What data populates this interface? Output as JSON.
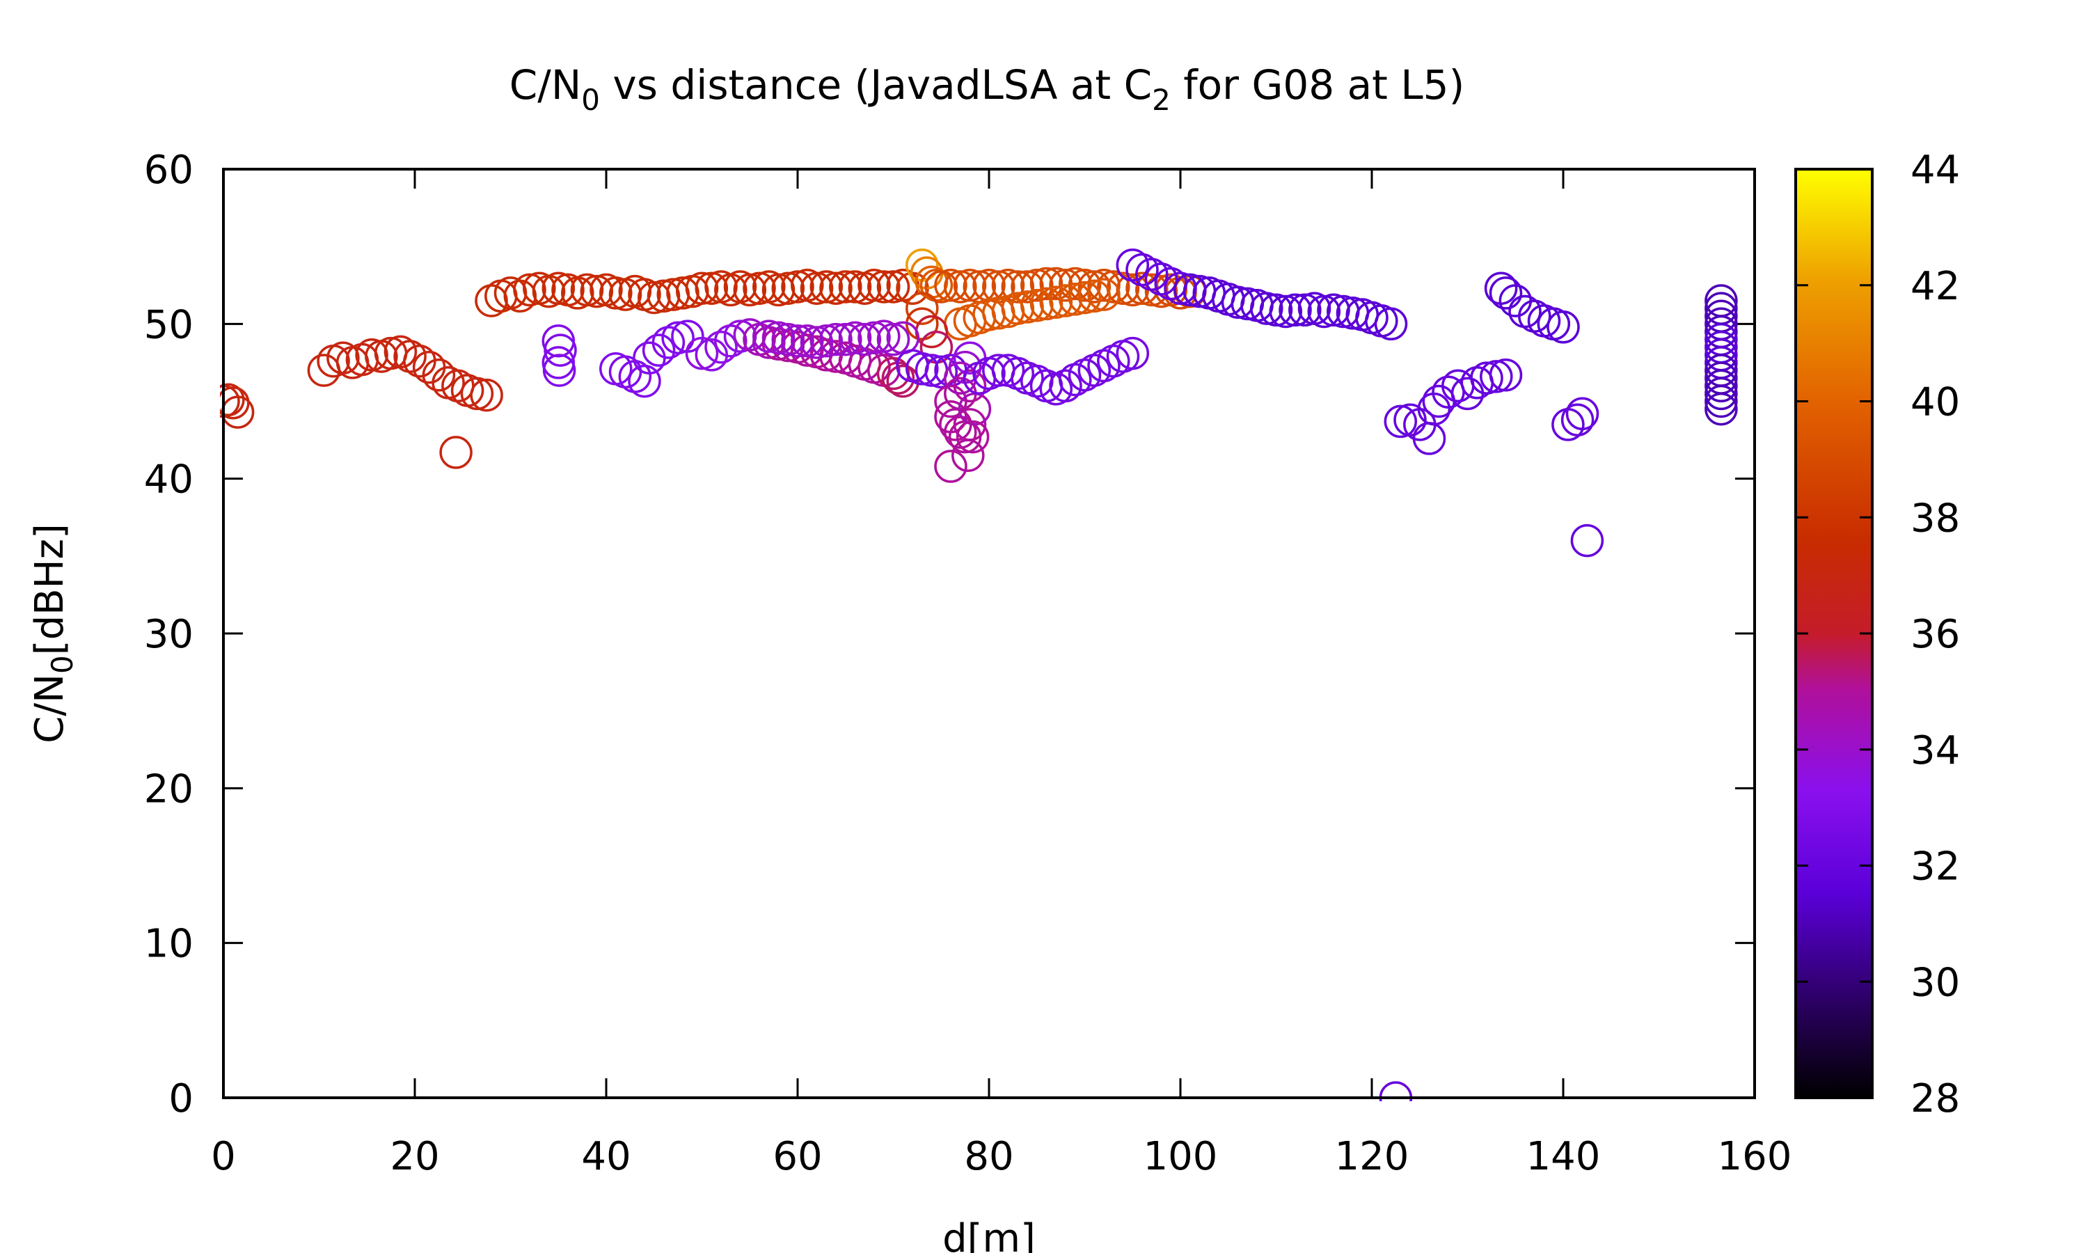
{
  "chart_data": {
    "type": "scatter",
    "title": {
      "prefix": "C/N",
      "prefix_sub": "0",
      "middle": " vs distance (JavadLSA at C",
      "middle_sub": "2",
      "suffix": " for G08 at L5)"
    },
    "xlabel": "d[m]",
    "ylabel": {
      "main": "C/N",
      "sub": "0",
      "rest": "[dBHz]"
    },
    "xlim": [
      0,
      160
    ],
    "ylim": [
      0,
      60
    ],
    "xticks": [
      "0",
      "20",
      "40",
      "60",
      "80",
      "100",
      "120",
      "140",
      "160"
    ],
    "yticks": [
      "0",
      "10",
      "20",
      "30",
      "40",
      "50",
      "60"
    ],
    "colorbar": {
      "range": [
        28,
        44
      ],
      "ticks": [
        "28",
        "30",
        "32",
        "34",
        "36",
        "38",
        "40",
        "42",
        "44"
      ]
    },
    "marker": "open-circle",
    "grid": false,
    "legend": "none",
    "points": [
      [
        0.0,
        45.0,
        37.0
      ],
      [
        0.5,
        45.1,
        37.0
      ],
      [
        1.0,
        44.9,
        37.0
      ],
      [
        1.5,
        44.3,
        37.0
      ],
      [
        10.5,
        47.0,
        37.0
      ],
      [
        11.5,
        47.6,
        37.0
      ],
      [
        12.5,
        47.8,
        37.0
      ],
      [
        13.5,
        47.5,
        37.0
      ],
      [
        14.5,
        47.7,
        37.0
      ],
      [
        15.5,
        48.0,
        37.0
      ],
      [
        16.5,
        47.9,
        37.0
      ],
      [
        17.5,
        48.1,
        37.0
      ],
      [
        18.5,
        48.2,
        37.0
      ],
      [
        19.5,
        47.9,
        37.0
      ],
      [
        20.5,
        47.6,
        37.0
      ],
      [
        21.5,
        47.2,
        37.0
      ],
      [
        22.5,
        46.7,
        37.0
      ],
      [
        23.5,
        46.2,
        37.0
      ],
      [
        24.5,
        46.0,
        37.0
      ],
      [
        25.5,
        45.7,
        37.0
      ],
      [
        26.5,
        45.5,
        37.0
      ],
      [
        27.5,
        45.4,
        37.0
      ],
      [
        24.3,
        41.7,
        37.0
      ],
      [
        28.0,
        51.5,
        37.5
      ],
      [
        29.0,
        51.8,
        37.5
      ],
      [
        30.0,
        52.0,
        37.5
      ],
      [
        31.0,
        51.8,
        37.5
      ],
      [
        32.0,
        52.2,
        37.5
      ],
      [
        33.0,
        52.3,
        37.5
      ],
      [
        34.0,
        52.1,
        37.5
      ],
      [
        35.0,
        52.3,
        37.5
      ],
      [
        36.0,
        52.2,
        37.5
      ],
      [
        37.0,
        52.0,
        37.5
      ],
      [
        38.0,
        52.2,
        37.5
      ],
      [
        39.0,
        52.1,
        37.5
      ],
      [
        40.0,
        52.2,
        37.5
      ],
      [
        41.0,
        52.0,
        37.5
      ],
      [
        42.0,
        51.9,
        37.5
      ],
      [
        43.0,
        52.1,
        37.5
      ],
      [
        44.0,
        51.9,
        37.5
      ],
      [
        45.0,
        51.7,
        37.5
      ],
      [
        46.0,
        51.8,
        37.5
      ],
      [
        47.0,
        51.9,
        37.5
      ],
      [
        48.0,
        52.0,
        37.5
      ],
      [
        49.0,
        52.1,
        37.5
      ],
      [
        50.0,
        52.3,
        37.5
      ],
      [
        51.0,
        52.3,
        37.5
      ],
      [
        52.0,
        52.4,
        37.5
      ],
      [
        53.0,
        52.2,
        37.5
      ],
      [
        54.0,
        52.4,
        37.5
      ],
      [
        55.0,
        52.2,
        37.5
      ],
      [
        56.0,
        52.3,
        37.5
      ],
      [
        57.0,
        52.4,
        37.5
      ],
      [
        58.0,
        52.2,
        37.5
      ],
      [
        59.0,
        52.3,
        37.5
      ],
      [
        60.0,
        52.4,
        37.5
      ],
      [
        61.0,
        52.5,
        37.5
      ],
      [
        62.0,
        52.3,
        37.5
      ],
      [
        63.0,
        52.4,
        37.5
      ],
      [
        64.0,
        52.3,
        37.5
      ],
      [
        65.0,
        52.4,
        37.5
      ],
      [
        66.0,
        52.4,
        37.5
      ],
      [
        67.0,
        52.3,
        37.5
      ],
      [
        68.0,
        52.5,
        37.5
      ],
      [
        69.0,
        52.4,
        37.5
      ],
      [
        70.0,
        52.4,
        37.5
      ],
      [
        71.0,
        52.5,
        37.5
      ],
      [
        72.0,
        52.3,
        38.0
      ],
      [
        73.0,
        53.8,
        42.0
      ],
      [
        73.5,
        53.3,
        41.0
      ],
      [
        74.0,
        52.7,
        40.0
      ],
      [
        74.5,
        52.5,
        39.5
      ],
      [
        75.0,
        52.4,
        39.0
      ],
      [
        76.0,
        52.5,
        39.0
      ],
      [
        77.0,
        52.4,
        39.0
      ],
      [
        78.0,
        52.5,
        39.0
      ],
      [
        79.0,
        52.4,
        39.0
      ],
      [
        80.0,
        52.5,
        39.0
      ],
      [
        81.0,
        52.4,
        39.0
      ],
      [
        82.0,
        52.5,
        39.0
      ],
      [
        83.0,
        52.4,
        39.0
      ],
      [
        84.0,
        52.4,
        39.0
      ],
      [
        85.0,
        52.5,
        39.0
      ],
      [
        86.0,
        52.6,
        39.0
      ],
      [
        87.0,
        52.6,
        39.0
      ],
      [
        88.0,
        52.5,
        39.0
      ],
      [
        89.0,
        52.6,
        39.0
      ],
      [
        90.0,
        52.5,
        39.0
      ],
      [
        91.0,
        52.4,
        39.0
      ],
      [
        92.0,
        52.5,
        39.0
      ],
      [
        93.0,
        52.4,
        39.0
      ],
      [
        94.0,
        52.3,
        39.0
      ],
      [
        95.0,
        52.2,
        39.0
      ],
      [
        96.0,
        52.3,
        39.0
      ],
      [
        97.0,
        52.2,
        39.0
      ],
      [
        98.0,
        52.1,
        39.0
      ],
      [
        99.0,
        52.2,
        39.0
      ],
      [
        100.0,
        52.0,
        39.0
      ],
      [
        101.0,
        52.1,
        39.0
      ],
      [
        77.0,
        50.0,
        39.5
      ],
      [
        78.0,
        50.2,
        39.5
      ],
      [
        79.0,
        50.4,
        39.5
      ],
      [
        80.0,
        50.6,
        39.5
      ],
      [
        81.0,
        50.7,
        39.5
      ],
      [
        82.0,
        50.8,
        39.5
      ],
      [
        83.0,
        51.0,
        39.5
      ],
      [
        84.0,
        51.1,
        39.5
      ],
      [
        85.0,
        51.2,
        39.5
      ],
      [
        86.0,
        51.3,
        39.5
      ],
      [
        87.0,
        51.4,
        39.5
      ],
      [
        88.0,
        51.5,
        39.5
      ],
      [
        89.0,
        51.6,
        39.5
      ],
      [
        90.0,
        51.7,
        39.5
      ],
      [
        91.0,
        51.8,
        39.5
      ],
      [
        92.0,
        51.9,
        39.5
      ],
      [
        73.0,
        51.0,
        38.5
      ],
      [
        73.0,
        50.0,
        38.0
      ],
      [
        74.0,
        49.5,
        36.0
      ],
      [
        74.5,
        48.5,
        35.5
      ],
      [
        35.0,
        48.9,
        33.0
      ],
      [
        35.2,
        48.3,
        33.0
      ],
      [
        35.0,
        47.5,
        33.0
      ],
      [
        35.1,
        47.0,
        33.0
      ],
      [
        41.0,
        47.1,
        33.0
      ],
      [
        42.0,
        46.9,
        33.0
      ],
      [
        43.0,
        46.6,
        33.0
      ],
      [
        44.0,
        46.3,
        33.0
      ],
      [
        44.5,
        47.8,
        33.0
      ],
      [
        45.5,
        48.3,
        33.0
      ],
      [
        46.5,
        48.8,
        33.0
      ],
      [
        47.5,
        49.1,
        33.0
      ],
      [
        48.5,
        49.2,
        33.0
      ],
      [
        50.0,
        48.1,
        33.5
      ],
      [
        51.0,
        48.0,
        33.5
      ],
      [
        52.0,
        48.5,
        33.5
      ],
      [
        53.0,
        48.9,
        33.5
      ],
      [
        54.0,
        49.2,
        33.5
      ],
      [
        55.0,
        49.3,
        34.0
      ],
      [
        56.0,
        49.0,
        34.5
      ],
      [
        57.0,
        48.8,
        34.5
      ],
      [
        58.0,
        48.7,
        35.0
      ],
      [
        59.0,
        48.6,
        35.0
      ],
      [
        60.0,
        48.5,
        35.0
      ],
      [
        61.0,
        48.3,
        35.0
      ],
      [
        62.0,
        48.2,
        35.0
      ],
      [
        63.0,
        48.0,
        35.0
      ],
      [
        64.0,
        47.9,
        35.0
      ],
      [
        65.0,
        47.8,
        35.0
      ],
      [
        66.0,
        47.6,
        35.0
      ],
      [
        67.0,
        47.4,
        35.0
      ],
      [
        68.0,
        47.2,
        35.0
      ],
      [
        69.0,
        47.0,
        35.0
      ],
      [
        70.0,
        46.8,
        35.5
      ],
      [
        70.5,
        46.5,
        35.5
      ],
      [
        71.0,
        46.3,
        35.5
      ],
      [
        57.0,
        49.2,
        34.0
      ],
      [
        58.0,
        49.1,
        34.0
      ],
      [
        59.0,
        49.0,
        34.0
      ],
      [
        60.0,
        48.9,
        34.0
      ],
      [
        61.0,
        48.9,
        34.0
      ],
      [
        62.0,
        48.8,
        34.0
      ],
      [
        63.0,
        48.9,
        34.0
      ],
      [
        64.0,
        49.0,
        34.0
      ],
      [
        65.0,
        49.0,
        34.0
      ],
      [
        66.0,
        49.1,
        34.0
      ],
      [
        67.0,
        49.0,
        34.0
      ],
      [
        68.0,
        49.1,
        34.0
      ],
      [
        69.0,
        49.2,
        34.0
      ],
      [
        70.0,
        49.0,
        34.0
      ],
      [
        71.0,
        49.1,
        34.0
      ],
      [
        72.0,
        47.3,
        32.5
      ],
      [
        73.0,
        47.1,
        32.5
      ],
      [
        74.0,
        47.0,
        32.5
      ],
      [
        75.0,
        46.9,
        32.5
      ],
      [
        76.0,
        47.0,
        32.5
      ],
      [
        76.0,
        44.0,
        35.0
      ],
      [
        76.5,
        43.5,
        35.0
      ],
      [
        77.0,
        43.0,
        35.0
      ],
      [
        77.5,
        42.7,
        35.0
      ],
      [
        78.0,
        43.5,
        35.0
      ],
      [
        76.0,
        45.0,
        35.0
      ],
      [
        77.0,
        45.5,
        35.0
      ],
      [
        78.0,
        46.0,
        35.0
      ],
      [
        78.5,
        44.5,
        34.5
      ],
      [
        76.0,
        40.8,
        35.0
      ],
      [
        77.8,
        41.5,
        35.0
      ],
      [
        78.3,
        42.7,
        35.0
      ],
      [
        77.0,
        46.5,
        34.5
      ],
      [
        77.5,
        47.2,
        34.0
      ],
      [
        78.0,
        47.8,
        33.5
      ],
      [
        79.0,
        46.5,
        32.5
      ],
      [
        80.0,
        46.8,
        32.5
      ],
      [
        81.0,
        47.0,
        32.5
      ],
      [
        82.0,
        47.0,
        32.5
      ],
      [
        83.0,
        46.8,
        32.5
      ],
      [
        84.0,
        46.5,
        32.5
      ],
      [
        85.0,
        46.3,
        32.5
      ],
      [
        86.0,
        46.0,
        32.5
      ],
      [
        87.0,
        45.8,
        32.5
      ],
      [
        88.0,
        46.0,
        32.5
      ],
      [
        89.0,
        46.4,
        32.5
      ],
      [
        90.0,
        46.7,
        32.5
      ],
      [
        91.0,
        47.0,
        32.5
      ],
      [
        92.0,
        47.3,
        32.5
      ],
      [
        93.0,
        47.6,
        32.5
      ],
      [
        94.0,
        47.9,
        32.5
      ],
      [
        95.0,
        48.1,
        32.5
      ],
      [
        95.0,
        53.8,
        32.0
      ],
      [
        96.0,
        53.5,
        32.0
      ],
      [
        97.0,
        53.2,
        32.0
      ],
      [
        98.0,
        52.9,
        32.0
      ],
      [
        99.0,
        52.6,
        32.0
      ],
      [
        100.0,
        52.3,
        32.0
      ],
      [
        101.0,
        52.2,
        31.5
      ],
      [
        102.0,
        52.1,
        31.5
      ],
      [
        103.0,
        52.0,
        31.5
      ],
      [
        104.0,
        51.8,
        31.5
      ],
      [
        105.0,
        51.6,
        31.5
      ],
      [
        106.0,
        51.4,
        31.5
      ],
      [
        107.0,
        51.3,
        31.5
      ],
      [
        108.0,
        51.2,
        31.5
      ],
      [
        109.0,
        51.0,
        31.5
      ],
      [
        110.0,
        50.9,
        31.5
      ],
      [
        111.0,
        50.8,
        31.5
      ],
      [
        112.0,
        50.9,
        31.5
      ],
      [
        113.0,
        50.9,
        31.5
      ],
      [
        114.0,
        51.0,
        31.5
      ],
      [
        115.0,
        50.8,
        31.5
      ],
      [
        116.0,
        50.9,
        31.5
      ],
      [
        117.0,
        50.8,
        31.5
      ],
      [
        118.0,
        50.7,
        31.5
      ],
      [
        119.0,
        50.6,
        31.5
      ],
      [
        120.0,
        50.4,
        31.5
      ],
      [
        121.0,
        50.2,
        31.5
      ],
      [
        122.0,
        50.0,
        31.5
      ],
      [
        122.5,
        0.0,
        32.0
      ],
      [
        123.0,
        43.7,
        32.0
      ],
      [
        124.0,
        43.8,
        32.0
      ],
      [
        125.0,
        43.5,
        32.0
      ],
      [
        126.0,
        42.6,
        32.0
      ],
      [
        126.5,
        44.5,
        32.0
      ],
      [
        127.0,
        45.0,
        32.0
      ],
      [
        128.0,
        45.6,
        32.0
      ],
      [
        129.0,
        46.0,
        32.0
      ],
      [
        130.0,
        45.5,
        32.0
      ],
      [
        131.0,
        46.2,
        32.0
      ],
      [
        132.0,
        46.5,
        32.0
      ],
      [
        133.0,
        46.6,
        32.0
      ],
      [
        134.0,
        46.7,
        32.0
      ],
      [
        133.5,
        52.3,
        31.5
      ],
      [
        134.0,
        52.0,
        31.5
      ],
      [
        135.0,
        51.5,
        31.5
      ],
      [
        136.0,
        50.8,
        31.5
      ],
      [
        137.0,
        50.5,
        31.5
      ],
      [
        138.0,
        50.2,
        31.5
      ],
      [
        139.0,
        50.0,
        31.5
      ],
      [
        140.0,
        49.8,
        31.5
      ],
      [
        140.5,
        43.5,
        32.0
      ],
      [
        141.5,
        43.8,
        32.0
      ],
      [
        142.0,
        44.2,
        32.0
      ],
      [
        142.5,
        36.0,
        32.0
      ],
      [
        156.5,
        51.5,
        31.0
      ],
      [
        156.5,
        51.0,
        31.0
      ],
      [
        156.5,
        50.5,
        31.0
      ],
      [
        156.5,
        50.0,
        31.0
      ],
      [
        156.5,
        49.5,
        31.0
      ],
      [
        156.5,
        49.0,
        31.5
      ],
      [
        156.5,
        48.5,
        31.5
      ],
      [
        156.5,
        48.0,
        31.5
      ],
      [
        156.5,
        47.5,
        31.5
      ],
      [
        156.5,
        47.0,
        31.0
      ],
      [
        156.5,
        46.5,
        31.0
      ],
      [
        156.5,
        46.0,
        31.0
      ],
      [
        156.5,
        45.5,
        31.0
      ],
      [
        156.5,
        45.0,
        31.0
      ],
      [
        156.5,
        44.5,
        31.0
      ]
    ]
  }
}
